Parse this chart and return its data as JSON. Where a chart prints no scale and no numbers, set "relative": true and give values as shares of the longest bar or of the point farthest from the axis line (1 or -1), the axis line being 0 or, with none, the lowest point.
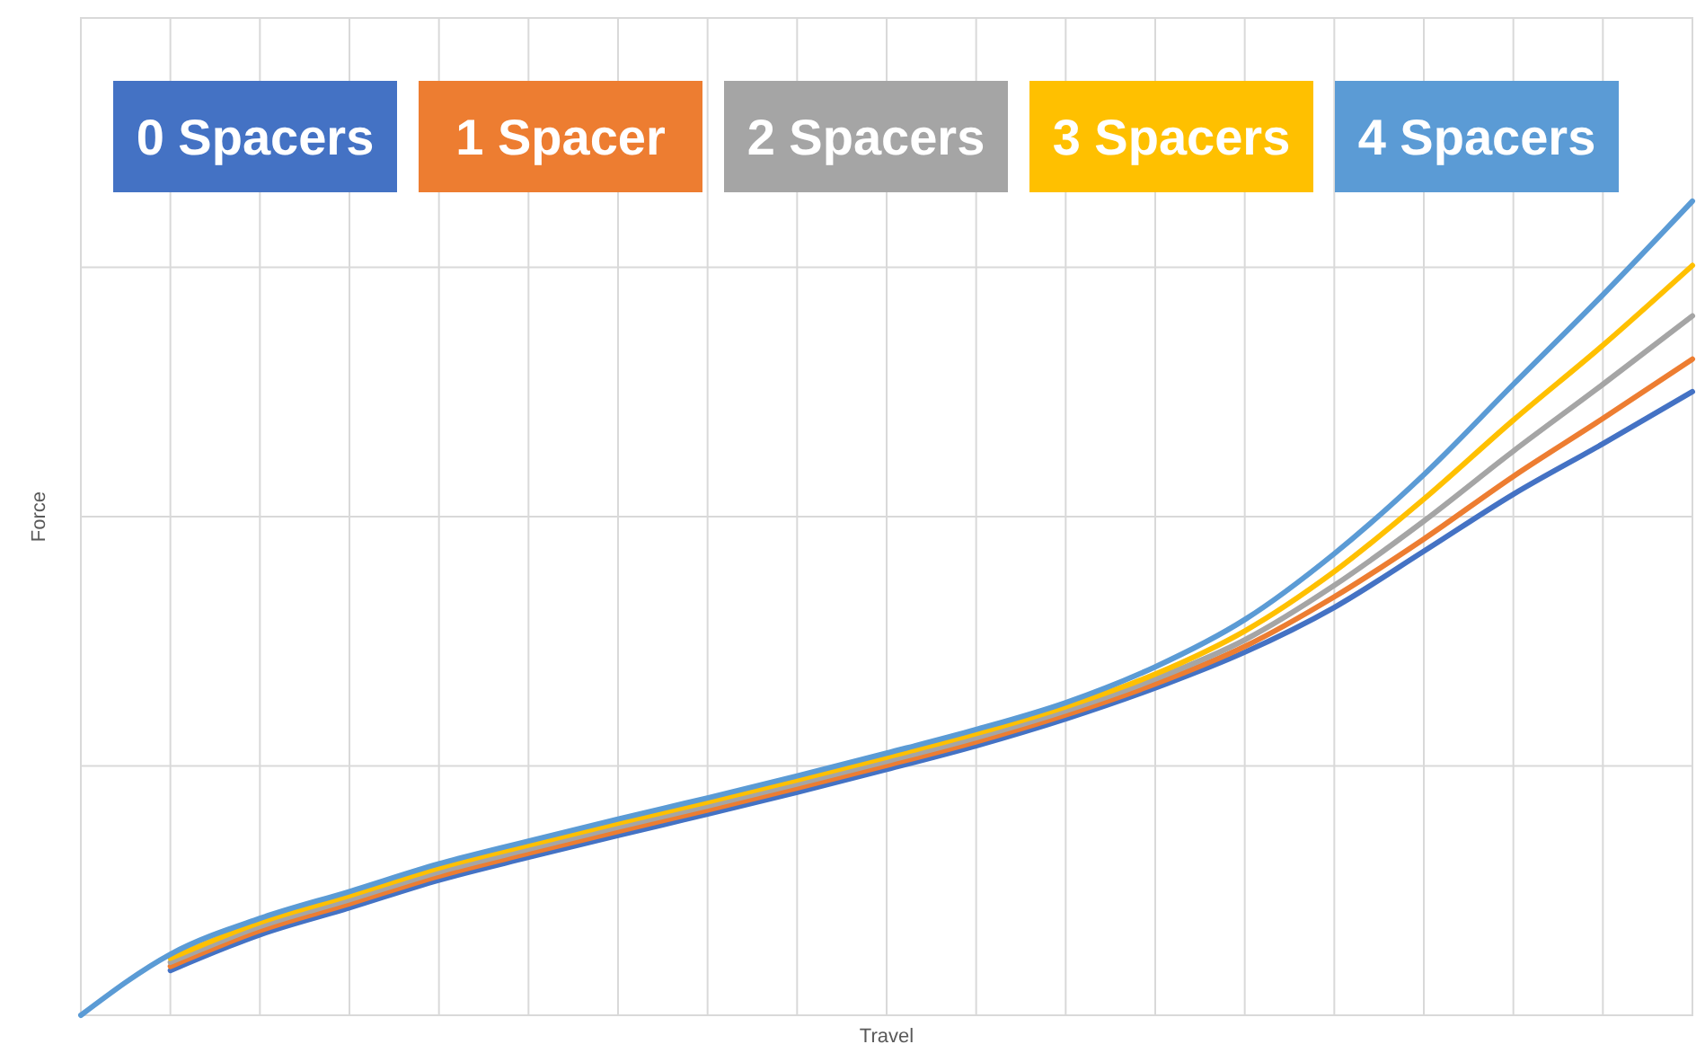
{
  "chart_data": {
    "type": "line",
    "relative": true,
    "xlabel": "Travel",
    "ylabel": "Force",
    "grid": true,
    "legend": "top",
    "categories": [
      null,
      null,
      null,
      null,
      null,
      null,
      null,
      null,
      null,
      null,
      null,
      null,
      null,
      null,
      null,
      null,
      null,
      null,
      null
    ],
    "series": [
      {
        "name": "0 Spacers",
        "color": "#4472c4",
        "values": [
          null,
          0.055,
          0.099,
          0.132,
          0.166,
          0.194,
          0.221,
          0.247,
          0.274,
          0.302,
          0.331,
          0.364,
          0.402,
          0.446,
          0.501,
          0.57,
          0.64,
          0.702,
          0.766
        ]
      },
      {
        "name": "1 Spacer",
        "color": "#ed7d31",
        "values": [
          null,
          0.06,
          0.104,
          0.137,
          0.171,
          0.199,
          0.226,
          0.252,
          0.279,
          0.307,
          0.336,
          0.369,
          0.407,
          0.453,
          0.514,
          0.585,
          0.662,
          0.733,
          0.806
        ]
      },
      {
        "name": "2 Spacers",
        "color": "#a5a5a5",
        "values": [
          null,
          0.065,
          0.109,
          0.142,
          0.176,
          0.204,
          0.231,
          0.257,
          0.284,
          0.312,
          0.341,
          0.374,
          0.413,
          0.461,
          0.528,
          0.607,
          0.693,
          0.775,
          0.859
        ]
      },
      {
        "name": "3 Spacers",
        "color": "#ffc000",
        "values": [
          null,
          0.07,
          0.114,
          0.147,
          0.181,
          0.209,
          0.236,
          0.262,
          0.289,
          0.317,
          0.346,
          0.379,
          0.419,
          0.472,
          0.545,
          0.634,
          0.731,
          0.823,
          0.921
        ]
      },
      {
        "name": "4 Spacers",
        "color": "#5b9bd5",
        "values": [
          0,
          0.075,
          0.119,
          0.152,
          0.186,
          0.214,
          0.241,
          0.267,
          0.294,
          0.322,
          0.351,
          0.384,
          0.428,
          0.486,
          0.567,
          0.664,
          0.775,
          0.885,
          1
        ]
      }
    ]
  }
}
